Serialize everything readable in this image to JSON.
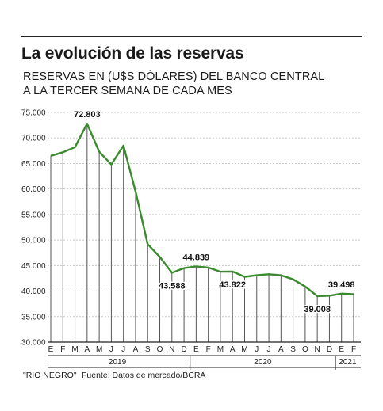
{
  "title": "La evolución de las reservas",
  "subtitle_lines": [
    "RESERVAS EN (U$S DÓLARES) DEL BANCO CENTRAL",
    "A LA TERCER SEMANA DE CADA MES"
  ],
  "footer": {
    "credit": "\"RÍO NEGRO\"",
    "source": "Fuente: Datos de mercado/BCRA"
  },
  "colors": {
    "line": "#3a8a2e",
    "axis": "#222222",
    "grid": "#c8c8c8",
    "drop": "#555555"
  },
  "chart_data": {
    "type": "line",
    "ylim": [
      30000,
      75000
    ],
    "yticks": [
      {
        "value": 30000,
        "label": "30.000"
      },
      {
        "value": 35000,
        "label": "35.000"
      },
      {
        "value": 40000,
        "label": "40.000"
      },
      {
        "value": 45000,
        "label": "45.000"
      },
      {
        "value": 50000,
        "label": "50.000"
      },
      {
        "value": 55000,
        "label": "55.000"
      },
      {
        "value": 60000,
        "label": "60.000"
      },
      {
        "value": 65000,
        "label": "65.000"
      },
      {
        "value": 70000,
        "label": "70.000"
      },
      {
        "value": 75000,
        "label": "75.000"
      }
    ],
    "categories": [
      "E",
      "F",
      "M",
      "A",
      "M",
      "J",
      "J",
      "A",
      "S",
      "O",
      "N",
      "D",
      "E",
      "F",
      "M",
      "A",
      "M",
      "J",
      "J",
      "A",
      "S",
      "O",
      "N",
      "D",
      "E",
      "F"
    ],
    "values": [
      66500,
      67200,
      68200,
      72803,
      67300,
      64800,
      68500,
      59500,
      49200,
      46700,
      43588,
      44500,
      44839,
      44600,
      43800,
      43822,
      42800,
      43100,
      43300,
      43100,
      42300,
      40900,
      39008,
      39100,
      39498,
      39400
    ],
    "annotations": [
      {
        "index": 3,
        "label": "72.803",
        "pos": "above"
      },
      {
        "index": 10,
        "label": "43.588",
        "pos": "below"
      },
      {
        "index": 12,
        "label": "44.839",
        "pos": "above"
      },
      {
        "index": 15,
        "label": "43.822",
        "pos": "below"
      },
      {
        "index": 22,
        "label": "39.008",
        "pos": "below"
      },
      {
        "index": 24,
        "label": "39.498",
        "pos": "above"
      }
    ],
    "year_groups": [
      {
        "label": "2019",
        "start": 0,
        "end": 11
      },
      {
        "label": "2020",
        "start": 12,
        "end": 23
      },
      {
        "label": "2021",
        "start": 24,
        "end": 25
      }
    ]
  }
}
